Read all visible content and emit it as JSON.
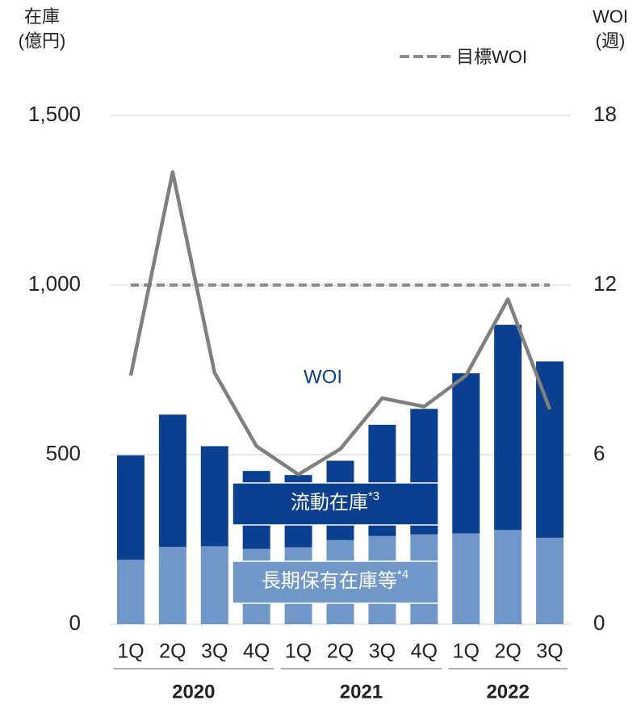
{
  "chart_data": {
    "type": "stacked_bar_line",
    "left_axis_label": [
      "在庫",
      "(億円)"
    ],
    "right_axis_label": [
      "WOI",
      "(週)"
    ],
    "categories": [
      "1Q",
      "2Q",
      "3Q",
      "4Q",
      "1Q",
      "2Q",
      "3Q",
      "4Q",
      "1Q",
      "2Q",
      "3Q"
    ],
    "x_groups": [
      {
        "label": "2020",
        "count": 4
      },
      {
        "label": "2021",
        "count": 4
      },
      {
        "label": "2022",
        "count": 3
      }
    ],
    "series": [
      {
        "name": "長期保有在庫等",
        "note": "*4",
        "color": "#7097c8",
        "values": [
          190,
          228,
          230,
          222,
          227,
          248,
          260,
          265,
          268,
          278,
          255
        ]
      },
      {
        "name": "流動在庫",
        "note": "*3",
        "color": "#0b3f8f",
        "values": [
          308,
          390,
          295,
          230,
          213,
          234,
          328,
          370,
          472,
          605,
          520
        ]
      },
      {
        "name": "WOI",
        "axis": "y2",
        "color": "#7f7f7f",
        "values": [
          8.8,
          16.0,
          8.9,
          6.3,
          5.3,
          6.2,
          8.0,
          7.7,
          8.8,
          11.5,
          7.6
        ]
      }
    ],
    "target": {
      "name": "目標WOI",
      "value": 12,
      "axis": "y2",
      "color": "#8c8c8c"
    },
    "ylim": [
      0,
      1500
    ],
    "yticks": [
      0,
      500,
      {
        "value": 1000,
        "label": "1,000"
      },
      {
        "value": 1500,
        "label": "1,500"
      }
    ],
    "y2lim": [
      0,
      18
    ],
    "y2ticks": [
      0,
      6,
      12,
      18
    ],
    "grid": true
  }
}
